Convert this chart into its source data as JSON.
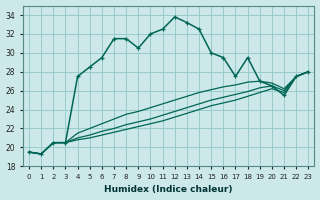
{
  "xlabel": "Humidex (Indice chaleur)",
  "bg_color": "#cce8e8",
  "grid_color": "#99cccc",
  "line_color": "#006655",
  "xlim": [
    -0.5,
    23.5
  ],
  "ylim": [
    18,
    35
  ],
  "xticks": [
    0,
    1,
    2,
    3,
    4,
    5,
    6,
    7,
    8,
    9,
    10,
    11,
    12,
    13,
    14,
    15,
    16,
    17,
    18,
    19,
    20,
    21,
    22,
    23
  ],
  "yticks": [
    18,
    20,
    22,
    24,
    26,
    28,
    30,
    32,
    34
  ],
  "main_series": [
    19.5,
    19.3,
    20.5,
    20.5,
    27.5,
    28.5,
    29.5,
    31.5,
    31.5,
    30.5,
    32.0,
    32.5,
    33.8,
    33.2,
    32.5,
    30.0,
    29.5,
    27.5,
    29.5,
    27.0,
    26.5,
    25.5,
    27.5,
    28.0
  ],
  "line2": [
    19.5,
    19.3,
    20.5,
    20.5,
    21.5,
    22.0,
    22.5,
    23.0,
    23.5,
    23.8,
    24.2,
    24.6,
    25.0,
    25.4,
    25.8,
    26.1,
    26.4,
    26.6,
    26.9,
    27.0,
    26.8,
    26.2,
    27.5,
    28.0
  ],
  "line3": [
    19.5,
    19.3,
    20.5,
    20.5,
    21.0,
    21.3,
    21.7,
    22.0,
    22.4,
    22.7,
    23.0,
    23.4,
    23.8,
    24.2,
    24.6,
    25.0,
    25.3,
    25.6,
    25.9,
    26.3,
    26.5,
    26.0,
    27.5,
    28.0
  ],
  "line4": [
    19.5,
    19.3,
    20.5,
    20.5,
    20.8,
    21.0,
    21.3,
    21.6,
    21.9,
    22.2,
    22.5,
    22.8,
    23.2,
    23.6,
    24.0,
    24.4,
    24.7,
    25.0,
    25.4,
    25.8,
    26.2,
    25.8,
    27.5,
    28.0
  ]
}
